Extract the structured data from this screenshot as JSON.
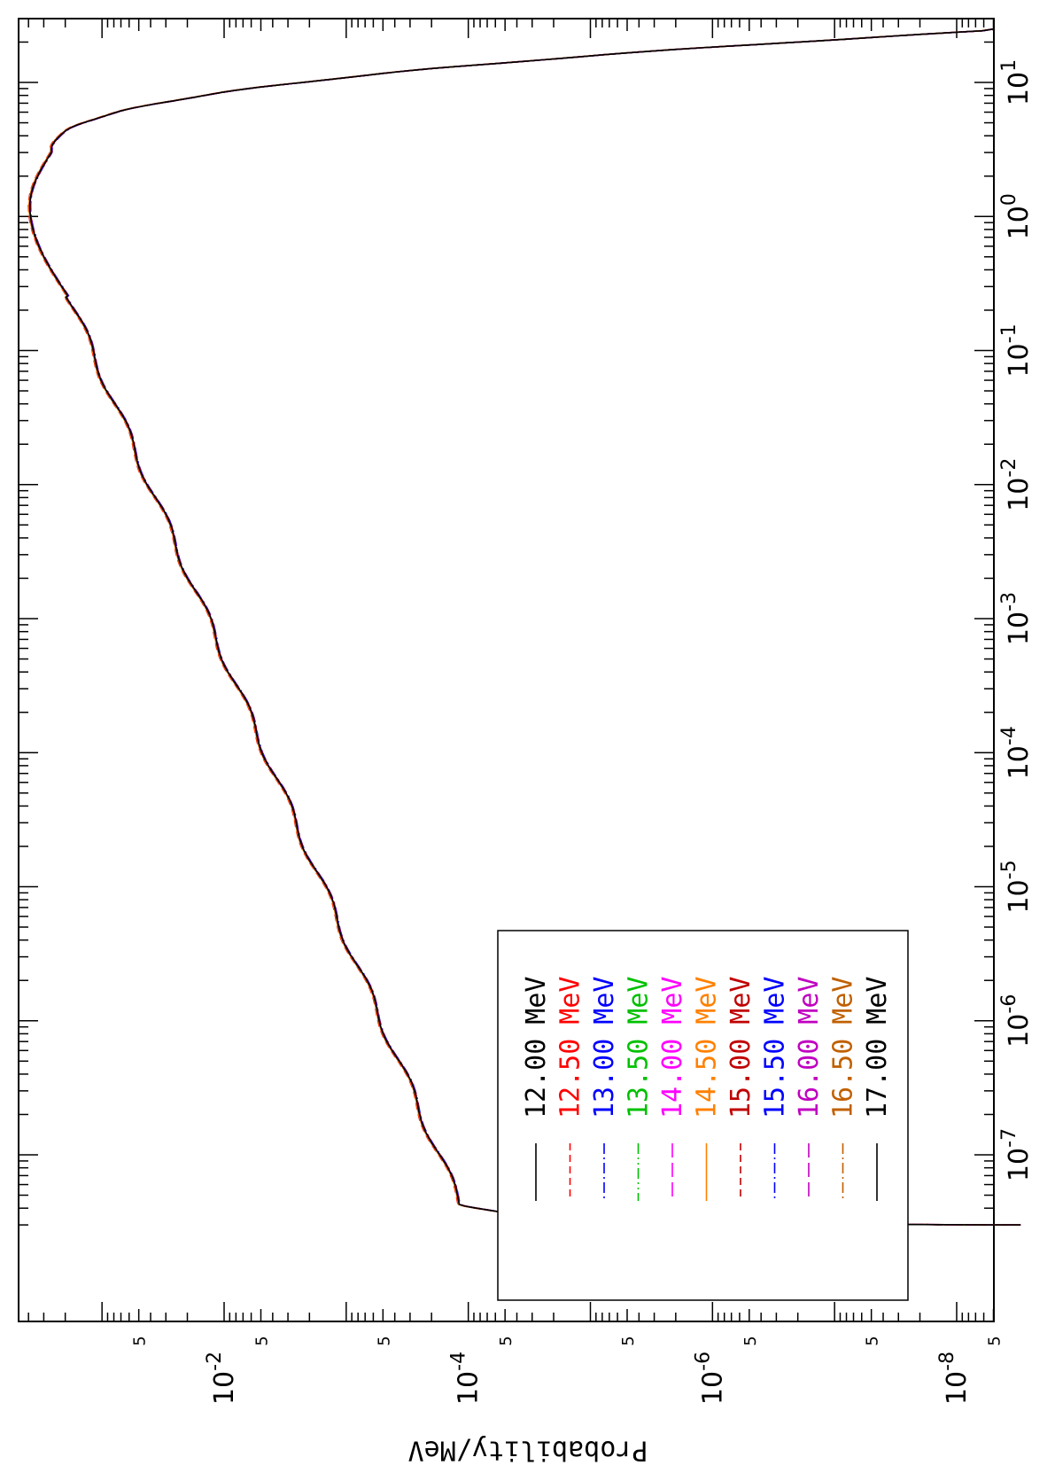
{
  "chart_data": {
    "type": "line",
    "title": "",
    "xlabel": "",
    "ylabel": "Probability/MeV",
    "x_scale": "log",
    "y_scale": "log",
    "xlim": [
      3e-08,
      35
    ],
    "ylim": [
      3e-09,
      0.45
    ],
    "x_ticks": [
      1e-07,
      1e-06,
      1e-05,
      0.0001,
      0.001,
      0.01,
      0.1,
      1,
      10
    ],
    "x_tick_labels": [
      {
        "base": "10",
        "exp": "-7"
      },
      {
        "base": "10",
        "exp": "-6"
      },
      {
        "base": "10",
        "exp": "-5"
      },
      {
        "base": "10",
        "exp": "-4"
      },
      {
        "base": "10",
        "exp": "-3"
      },
      {
        "base": "10",
        "exp": "-2"
      },
      {
        "base": "10",
        "exp": "-1"
      },
      {
        "base": "10",
        "exp": "0"
      },
      {
        "base": "10",
        "exp": "1"
      }
    ],
    "y_ticks": [
      1e-08,
      1e-06,
      0.0001,
      0.01
    ],
    "y_tick_labels": [
      {
        "base": "10",
        "exp": "-8"
      },
      {
        "base": "10",
        "exp": "-6"
      },
      {
        "base": "10",
        "exp": "-4"
      },
      {
        "base": "10",
        "exp": "-2"
      }
    ],
    "y_minor_label": "5",
    "y_minor_label_values": [
      5e-09,
      5e-08,
      5e-07,
      5e-06,
      5e-05,
      0.0005,
      0.005,
      0.05,
      0.5
    ],
    "legend_placement": "bottom-left (rotated page)",
    "series": [
      {
        "label": "12.00",
        "unit": "MeV",
        "color": "#000000",
        "dash": "solid",
        "scale": 1.0
      },
      {
        "label": "12.50",
        "unit": "MeV",
        "color": "#ff0000",
        "dash": "dashed",
        "scale": 1.05
      },
      {
        "label": "13.00",
        "unit": "MeV",
        "color": "#0000ff",
        "dash": "dashdot",
        "scale": 0.97
      },
      {
        "label": "13.50",
        "unit": "MeV",
        "color": "#00c000",
        "dash": "dashdotdot",
        "scale": 1.02
      },
      {
        "label": "14.00",
        "unit": "MeV",
        "color": "#ff00ff",
        "dash": "longdash",
        "scale": 0.99
      },
      {
        "label": "14.50",
        "unit": "MeV",
        "color": "#ff8000",
        "dash": "solid",
        "scale": 1.03
      },
      {
        "label": "15.00",
        "unit": "MeV",
        "color": "#c00000",
        "dash": "dashed",
        "scale": 0.98
      },
      {
        "label": "15.50",
        "unit": "MeV",
        "color": "#0000ff",
        "dash": "dashdot",
        "scale": 1.01
      },
      {
        "label": "16.00",
        "unit": "MeV",
        "color": "#c000c0",
        "dash": "longdash",
        "scale": 1.0
      },
      {
        "label": "16.50",
        "unit": "MeV",
        "color": "#c06000",
        "dash": "dashdot",
        "scale": 1.02
      },
      {
        "label": "17.00",
        "unit": "MeV",
        "color": "#000000",
        "dash": "solid",
        "scale": 1.0
      }
    ],
    "curve_shape": {
      "x_start": 3e-08,
      "rise_top": 4.2e-08,
      "y_at_rise_top": 0.000115,
      "slope_decades_per_decade": 0.474,
      "peak_x": 1.2,
      "peak_y": 0.39,
      "y_at_3": 0.26,
      "x_end": 25,
      "y_at_end": 3e-09
    }
  }
}
